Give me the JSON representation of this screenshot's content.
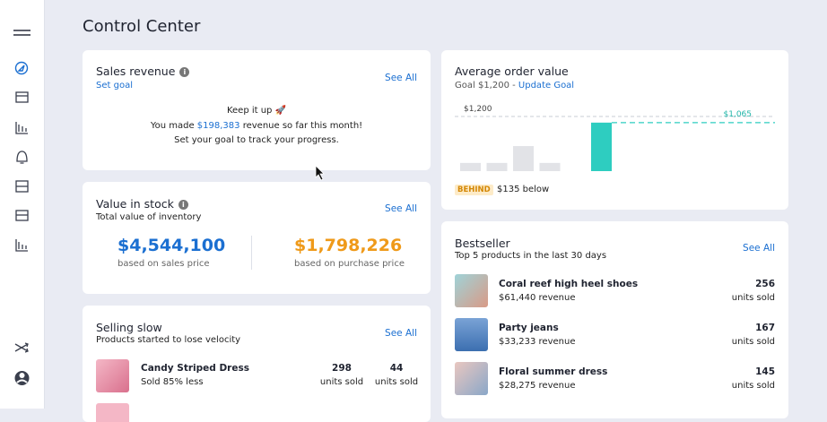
{
  "header": {
    "title": "Control Center"
  },
  "sales_revenue": {
    "title": "Sales revenue",
    "link": "Set goal",
    "see_all": "See All",
    "line1": "Keep it up 🚀",
    "line2_before": "You made",
    "amount": "$198,383",
    "line2_after": "revenue so far this month!",
    "line3": "Set your goal to track your progress."
  },
  "value_in_stock": {
    "title": "Value in stock",
    "subtitle": "Total value of inventory",
    "see_all": "See All",
    "sales_value": "$4,544,100",
    "sales_label": "based on sales price",
    "purchase_value": "$1,798,226",
    "purchase_label": "based on purchase price"
  },
  "selling_slow": {
    "title": "Selling slow",
    "subtitle": "Products started to lose velocity",
    "see_all": "See All",
    "items": [
      {
        "name": "Candy Striped Dress",
        "note": "Sold 85% less",
        "units_a": 298,
        "units_a_label": "units sold",
        "units_b": 44,
        "units_b_label": "units sold"
      }
    ]
  },
  "average_order_value": {
    "title": "Average order value",
    "goal_text": "Goal $1,200 -",
    "update_link": "Update Goal",
    "goal": 1200,
    "goal_label": "$1,200",
    "current": 1065,
    "current_label": "$1,065",
    "bars": [
      180,
      180,
      550,
      180
    ],
    "badge": "BEHIND",
    "below": "$135 below"
  },
  "bestseller": {
    "title": "Bestseller",
    "subtitle": "Top 5 products in the last 30 days",
    "see_all": "See All",
    "items": [
      {
        "name": "Coral reef high heel shoes",
        "revenue": "$61,440 revenue",
        "units": 256,
        "units_label": "units sold"
      },
      {
        "name": "Party jeans",
        "revenue": "$33,233 revenue",
        "units": 167,
        "units_label": "units sold"
      },
      {
        "name": "Floral summer dress",
        "revenue": "$28,275 revenue",
        "units": 145,
        "units_label": "units sold"
      }
    ]
  }
}
